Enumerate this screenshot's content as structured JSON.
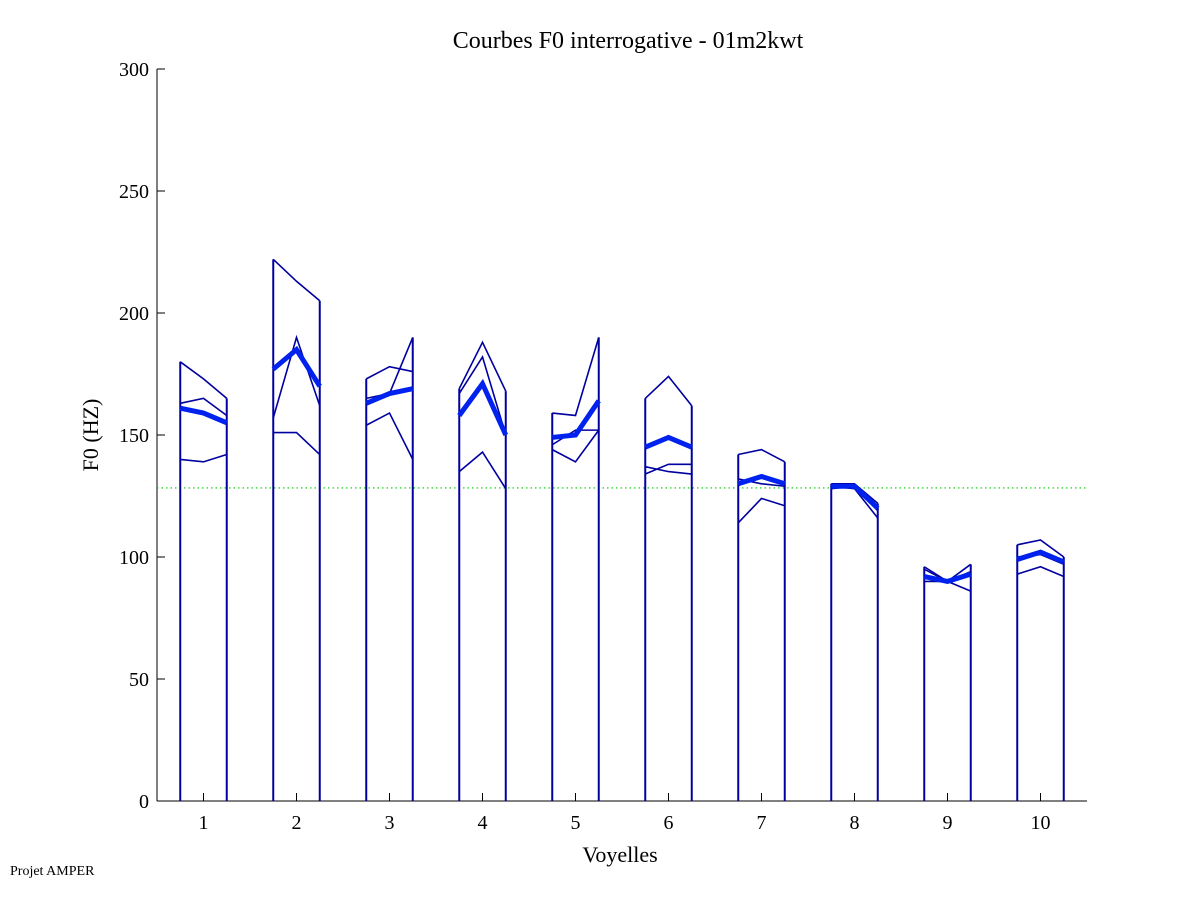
{
  "chart_data": {
    "type": "line",
    "title": "Courbes F0 interrogative - 01m2kwt",
    "xlabel": "Voyelles",
    "ylabel": "F0 (HZ)",
    "xlim": [
      0.5,
      10.5
    ],
    "ylim": [
      0,
      300
    ],
    "yticks": [
      0,
      50,
      100,
      150,
      200,
      250,
      300
    ],
    "xticks": [
      1,
      2,
      3,
      4,
      5,
      6,
      7,
      8,
      9,
      10
    ],
    "point_offsets": [
      -0.25,
      0,
      0.25
    ],
    "reference_line": {
      "value": 128.3,
      "color": "#00cc00",
      "style": "dotted"
    },
    "colors": {
      "thin": "#0000a0",
      "mean": "#0022ee"
    },
    "vowels": [
      {
        "x": 1,
        "curves": [
          [
            180,
            173,
            165
          ],
          [
            163,
            165,
            158
          ],
          [
            140,
            139,
            142
          ]
        ],
        "mean": [
          161,
          159,
          155
        ]
      },
      {
        "x": 2,
        "curves": [
          [
            222,
            213,
            205
          ],
          [
            157,
            190,
            162
          ],
          [
            151,
            151,
            142
          ]
        ],
        "mean": [
          177,
          185,
          170
        ]
      },
      {
        "x": 3,
        "curves": [
          [
            173,
            178,
            176
          ],
          [
            154,
            159,
            140
          ],
          [
            165,
            167,
            190
          ]
        ],
        "mean": [
          163,
          167,
          169
        ]
      },
      {
        "x": 4,
        "curves": [
          [
            169,
            188,
            168
          ],
          [
            167,
            182,
            150
          ],
          [
            135,
            143,
            128
          ]
        ],
        "mean": [
          158,
          171,
          150
        ]
      },
      {
        "x": 5,
        "curves": [
          [
            159,
            158,
            190
          ],
          [
            144,
            139,
            152
          ],
          [
            146,
            152,
            152
          ]
        ],
        "mean": [
          149,
          150,
          164
        ]
      },
      {
        "x": 6,
        "curves": [
          [
            165,
            174,
            162
          ],
          [
            137,
            135,
            134
          ],
          [
            134,
            138,
            138
          ]
        ],
        "mean": [
          145,
          149,
          145
        ]
      },
      {
        "x": 7,
        "curves": [
          [
            142,
            144,
            139
          ],
          [
            132,
            130,
            129
          ],
          [
            114,
            124,
            121
          ]
        ],
        "mean": [
          130,
          133,
          130
        ]
      },
      {
        "x": 8,
        "curves": [
          [
            130,
            130,
            122
          ],
          [
            129,
            128,
            116
          ],
          [
            128,
            129,
            119
          ]
        ],
        "mean": [
          129,
          129,
          120
        ]
      },
      {
        "x": 9,
        "curves": [
          [
            96,
            90,
            97
          ],
          [
            95,
            90,
            86
          ],
          [
            90,
            90,
            94
          ]
        ],
        "mean": [
          92,
          90,
          93
        ]
      },
      {
        "x": 10,
        "curves": [
          [
            105,
            107,
            100
          ],
          [
            93,
            96,
            92
          ],
          [
            100,
            101,
            97
          ]
        ],
        "mean": [
          99,
          102,
          98
        ]
      }
    ]
  },
  "footer": "Projet AMPER"
}
